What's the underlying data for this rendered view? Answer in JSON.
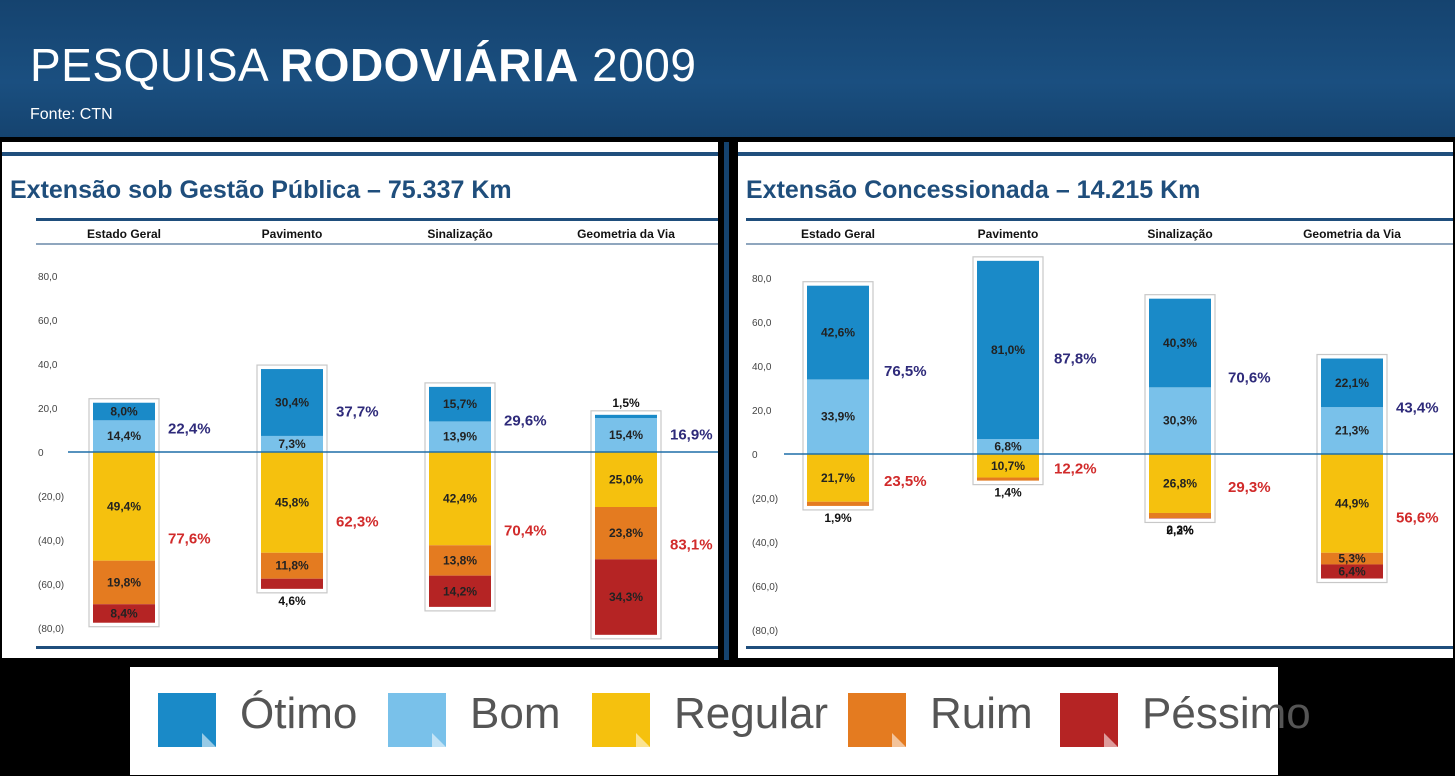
{
  "header": {
    "title_light": "PESQUISA ",
    "title_bold": "RODOVIÁRIA",
    "title_year": " 2009",
    "source": "Fonte: CTN"
  },
  "colors": {
    "otimo": "#1a8ac8",
    "bom": "#79c1ea",
    "regular": "#f5c10e",
    "ruim": "#e47b20",
    "pessimo": "#b52424",
    "title_blue": "#1f4e7c"
  },
  "legend": [
    {
      "key": "otimo",
      "label": "Ótimo"
    },
    {
      "key": "bom",
      "label": "Bom"
    },
    {
      "key": "regular",
      "label": "Regular"
    },
    {
      "key": "ruim",
      "label": "Ruim"
    },
    {
      "key": "pessimo",
      "label": "Péssimo"
    }
  ],
  "chart_data": [
    {
      "type": "bar",
      "title": "Extensão sob Gestão Pública – 75.337 Km",
      "categories": [
        "Estado Geral",
        "Pavimento",
        "Sinalização",
        "Geometria da Via"
      ],
      "y_ticks": [
        "80,0",
        "60,0",
        "40,0",
        "20,0",
        "0",
        "(20,0)",
        "(40,0)",
        "(60,0)",
        "(80,0)"
      ],
      "ylim": [
        -80,
        80
      ],
      "series": [
        {
          "key": "otimo",
          "name": "Ótimo",
          "values": [
            8.0,
            30.4,
            15.7,
            1.5
          ],
          "labels": [
            "8,0%",
            "30,4%",
            "15,7%",
            "1,5%"
          ]
        },
        {
          "key": "bom",
          "name": "Bom",
          "values": [
            14.4,
            7.3,
            13.9,
            15.4
          ],
          "labels": [
            "14,4%",
            "7,3%",
            "13,9%",
            "15,4%"
          ]
        },
        {
          "key": "regular",
          "name": "Regular",
          "values": [
            49.4,
            45.8,
            42.4,
            25.0
          ],
          "labels": [
            "49,4%",
            "45,8%",
            "42,4%",
            "25,0%"
          ]
        },
        {
          "key": "ruim",
          "name": "Ruim",
          "values": [
            19.8,
            11.8,
            13.8,
            23.8
          ],
          "labels": [
            "19,8%",
            "11,8%",
            "13,8%",
            "23,8%"
          ]
        },
        {
          "key": "pessimo",
          "name": "Péssimo",
          "values": [
            8.4,
            4.6,
            14.2,
            34.3
          ],
          "labels": [
            "8,4%",
            "4,6%",
            "14,2%",
            "34,3%"
          ]
        }
      ],
      "positive_totals": [
        "22,4%",
        "37,7%",
        "29,6%",
        "16,9%"
      ],
      "negative_totals": [
        "77,6%",
        "62,3%",
        "70,4%",
        "83,1%"
      ]
    },
    {
      "type": "bar",
      "title": "Extensão Concessionada – 14.215 Km",
      "categories": [
        "Estado Geral",
        "Pavimento",
        "Sinalização",
        "Geometria da Via"
      ],
      "y_ticks": [
        "80,0",
        "60,0",
        "40,0",
        "20,0",
        "0",
        "(20,0)",
        "(40,0)",
        "(60,0)",
        "(80,0)"
      ],
      "ylim": [
        -80,
        80
      ],
      "series": [
        {
          "key": "otimo",
          "name": "Ótimo",
          "values": [
            42.6,
            81.0,
            40.3,
            22.1
          ],
          "labels": [
            "42,6%",
            "81,0%",
            "40,3%",
            "22,1%"
          ]
        },
        {
          "key": "bom",
          "name": "Bom",
          "values": [
            33.9,
            6.8,
            30.3,
            21.3
          ],
          "labels": [
            "33,9%",
            "6,8%",
            "30,3%",
            "21,3%"
          ]
        },
        {
          "key": "regular",
          "name": "Regular",
          "values": [
            21.7,
            10.7,
            26.8,
            44.9
          ],
          "labels": [
            "21,7%",
            "10,7%",
            "26,8%",
            "44,9%"
          ]
        },
        {
          "key": "ruim",
          "name": "Ruim",
          "values": [
            1.9,
            1.4,
            2.3,
            5.3
          ],
          "labels": [
            "1,9%",
            "1,4%",
            "2,3%",
            "5,3%"
          ]
        },
        {
          "key": "pessimo",
          "name": "Péssimo",
          "values": [
            0.0,
            0.0,
            0.2,
            6.4
          ],
          "labels": [
            "",
            "",
            "0,2%",
            "6,4%"
          ]
        }
      ],
      "positive_totals": [
        "76,5%",
        "87,8%",
        "70,6%",
        "43,4%"
      ],
      "negative_totals": [
        "23,5%",
        "12,2%",
        "29,3%",
        "56,6%"
      ]
    }
  ]
}
